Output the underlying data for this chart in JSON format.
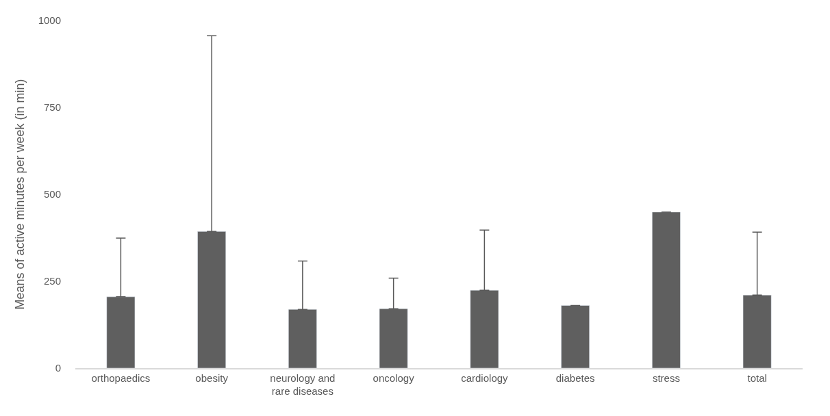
{
  "chart_data": {
    "type": "bar",
    "ylabel": "Means of active minutes per week (in min)",
    "categories": [
      "orthopaedics",
      "obesity",
      "neurology and rare diseases",
      "oncology",
      "cardiology",
      "diabetes",
      "stress",
      "total"
    ],
    "values": [
      205,
      393,
      169,
      171,
      224,
      180,
      449,
      210
    ],
    "errors": [
      [
        205,
        374
      ],
      [
        393,
        956
      ],
      [
        169,
        308
      ],
      [
        171,
        259
      ],
      [
        224,
        397
      ],
      null,
      null,
      [
        210,
        391
      ]
    ],
    "color": "#5f5f5f",
    "ylim": [
      0,
      1000
    ],
    "yticks": [
      0,
      250,
      500,
      750,
      1000
    ],
    "grid": false,
    "legend": false
  }
}
